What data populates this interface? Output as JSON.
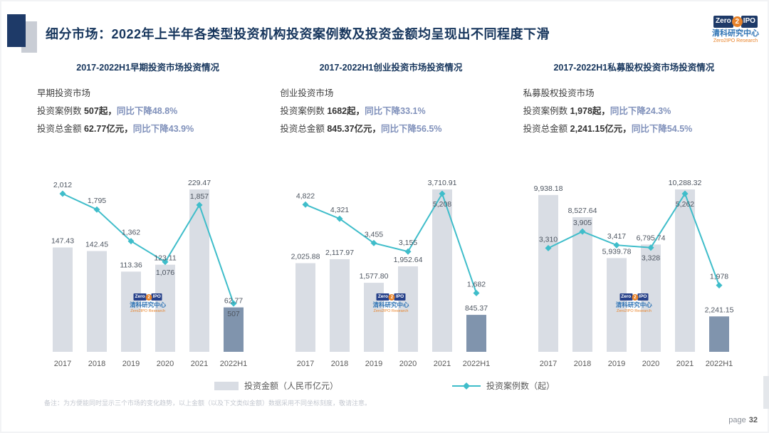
{
  "slide": {
    "title": "细分市场：2022年上半年各类型投资机构投资案例数及投资金额均呈现出不同程度下滑",
    "note": "备注：为方便能同时显示三个市场的变化趋势，以上金额（以及下文类似金额）数据采用不同坐标刻度，敬请注意。",
    "page_label": "page",
    "page_number": "32"
  },
  "logo": {
    "zero": "Zero",
    "two": "2",
    "ipo": "IPO",
    "cn": "清科研究中心",
    "en": "Zero2IPO Research"
  },
  "legend": {
    "bar_label": "投资金额（人民币亿元）",
    "line_label": "投资案例数（起）"
  },
  "colors": {
    "navy": "#17365d",
    "bar": "#d9dde4",
    "bar_last": "#8094ad",
    "line": "#3fbdca",
    "change_blue": "#8091bb",
    "orange": "#e8832a",
    "logo_blue": "#2f74b5",
    "label_gray": "#595959"
  },
  "charts": [
    {
      "header": "2017-2022H1早期投资市场投资情况",
      "market": "早期投资市场",
      "cases_prefix": "投资案例数 ",
      "cases_value": "507起，",
      "cases_change": "同比下降48.8%",
      "amount_prefix": "投资总金额 ",
      "amount_value": "62.77亿元，",
      "amount_change": "同比下降43.9%"
    },
    {
      "header": "2017-2022H1创业投资市场投资情况",
      "market": "创业投资市场",
      "cases_prefix": "投资案例数 ",
      "cases_value": "1682起，",
      "cases_change": "同比下降33.1%",
      "amount_prefix": "投资总金额 ",
      "amount_value": "845.37亿元，",
      "amount_change": "同比下降56.5%"
    },
    {
      "header": "2017-2022H1私募股权投资市场投资情况",
      "market": "私募股权投资市场",
      "cases_prefix": "投资案例数 ",
      "cases_value": "1,978起，",
      "cases_change": "同比下降24.3%",
      "amount_prefix": "投资总金额 ",
      "amount_value": "2,241.15亿元，",
      "amount_change": "同比下降54.5%"
    }
  ],
  "chart_data": [
    {
      "type": "bar+line",
      "title": "2017-2022H1早期投资市场投资情况",
      "categories": [
        "2017",
        "2018",
        "2019",
        "2020",
        "2021",
        "2022H1"
      ],
      "series": [
        {
          "name": "投资金额（人民币亿元）",
          "kind": "bar",
          "values": [
            147.43,
            142.45,
            113.36,
            123.11,
            229.47,
            62.77
          ],
          "labels": [
            "147.43",
            "142.45",
            "113.36",
            "123.11",
            "229.47",
            "62.77"
          ]
        },
        {
          "name": "投资案例数（起）",
          "kind": "line",
          "values": [
            2012,
            1795,
            1362,
            1076,
            1857,
            507
          ],
          "labels": [
            "2,012",
            "1,795",
            "1,362",
            "1,076",
            "1,857",
            "507"
          ]
        }
      ],
      "y_axis": "hidden",
      "grid": false,
      "legend_position": "bottom-shared"
    },
    {
      "type": "bar+line",
      "title": "2017-2022H1创业投资市场投资情况",
      "categories": [
        "2017",
        "2018",
        "2019",
        "2020",
        "2021",
        "2022H1"
      ],
      "series": [
        {
          "name": "投资金额（人民币亿元）",
          "kind": "bar",
          "values": [
            2025.88,
            2117.97,
            1577.8,
            1952.64,
            3710.91,
            845.37
          ],
          "labels": [
            "2,025.88",
            "2,117.97",
            "1,577.80",
            "1,952.64",
            "3,710.91",
            "845.37"
          ]
        },
        {
          "name": "投资案例数（起）",
          "kind": "line",
          "values": [
            4822,
            4321,
            3455,
            3155,
            5208,
            1682
          ],
          "labels": [
            "4,822",
            "4,321",
            "3,455",
            "3,155",
            "5,208",
            "1,682"
          ]
        }
      ],
      "y_axis": "hidden",
      "grid": false,
      "legend_position": "bottom-shared"
    },
    {
      "type": "bar+line",
      "title": "2017-2022H1私募股权投资市场投资情况",
      "categories": [
        "2017",
        "2018",
        "2019",
        "2020",
        "2021",
        "2022H1"
      ],
      "series": [
        {
          "name": "投资金额（人民币亿元）",
          "kind": "bar",
          "values": [
            9938.18,
            8527.64,
            5939.78,
            6795.74,
            10288.32,
            2241.15
          ],
          "labels": [
            "9,938.18",
            "8,527.64",
            "5,939.78",
            "6,795.74",
            "10,288.32",
            "2,241.15"
          ]
        },
        {
          "name": "投资案例数（起）",
          "kind": "line",
          "values": [
            3310,
            3905,
            3417,
            3328,
            5262,
            1978
          ],
          "labels": [
            "3,310",
            "3,905",
            "3,417",
            "3,328",
            "5,262",
            "1,978"
          ]
        }
      ],
      "y_axis": "hidden",
      "grid": false,
      "legend_position": "bottom-shared"
    }
  ]
}
